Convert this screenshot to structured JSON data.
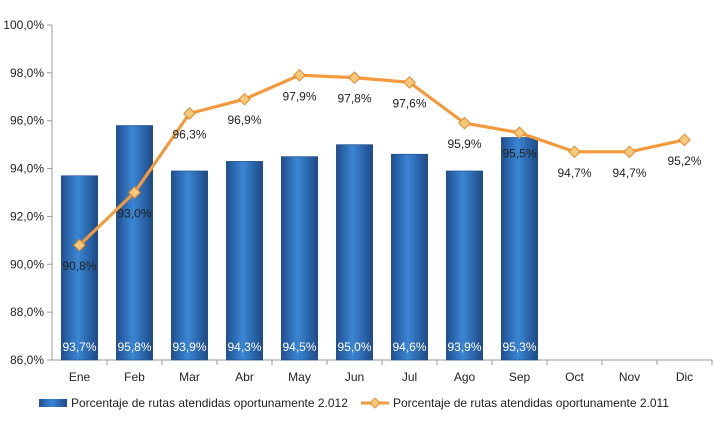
{
  "chart_data": {
    "type": "bar",
    "categories": [
      "Ene",
      "Feb",
      "Mar",
      "Abr",
      "May",
      "Jun",
      "Jul",
      "Ago",
      "Sep",
      "Oct",
      "Nov",
      "Dic"
    ],
    "ylim": [
      86.0,
      100.0
    ],
    "yticks": [
      86.0,
      88.0,
      90.0,
      92.0,
      94.0,
      96.0,
      98.0,
      100.0
    ],
    "ytick_labels": [
      "86,0%",
      "88,0%",
      "90,0%",
      "92,0%",
      "94,0%",
      "96,0%",
      "98,0%",
      "100,0%"
    ],
    "grid": false,
    "legend_position": "bottom",
    "series": [
      {
        "name": "Porcentaje de rutas atendidas oportunamente 2.012",
        "type": "bar",
        "color": "#2e6fb7",
        "values": [
          93.7,
          95.8,
          93.9,
          94.3,
          94.5,
          95.0,
          94.6,
          93.9,
          95.3,
          null,
          null,
          null
        ],
        "labels": [
          "93,7%",
          "95,8%",
          "93,9%",
          "94,3%",
          "94,5%",
          "95,0%",
          "94,6%",
          "93,9%",
          "95,3%",
          "",
          "",
          ""
        ]
      },
      {
        "name": "Porcentaje de rutas atendidas oportunamente 2.011",
        "type": "line",
        "color": "#f39a3d",
        "marker_color": "#f7c97a",
        "values": [
          90.8,
          93.0,
          96.3,
          96.9,
          97.9,
          97.8,
          97.6,
          95.9,
          95.5,
          94.7,
          94.7,
          95.2
        ],
        "labels": [
          "90,8%",
          "93,0%",
          "96,3%",
          "96,9%",
          "97,9%",
          "97,8%",
          "97,6%",
          "95,9%",
          "95,5%",
          "94,7%",
          "94,7%",
          "95,2%"
        ]
      }
    ]
  }
}
